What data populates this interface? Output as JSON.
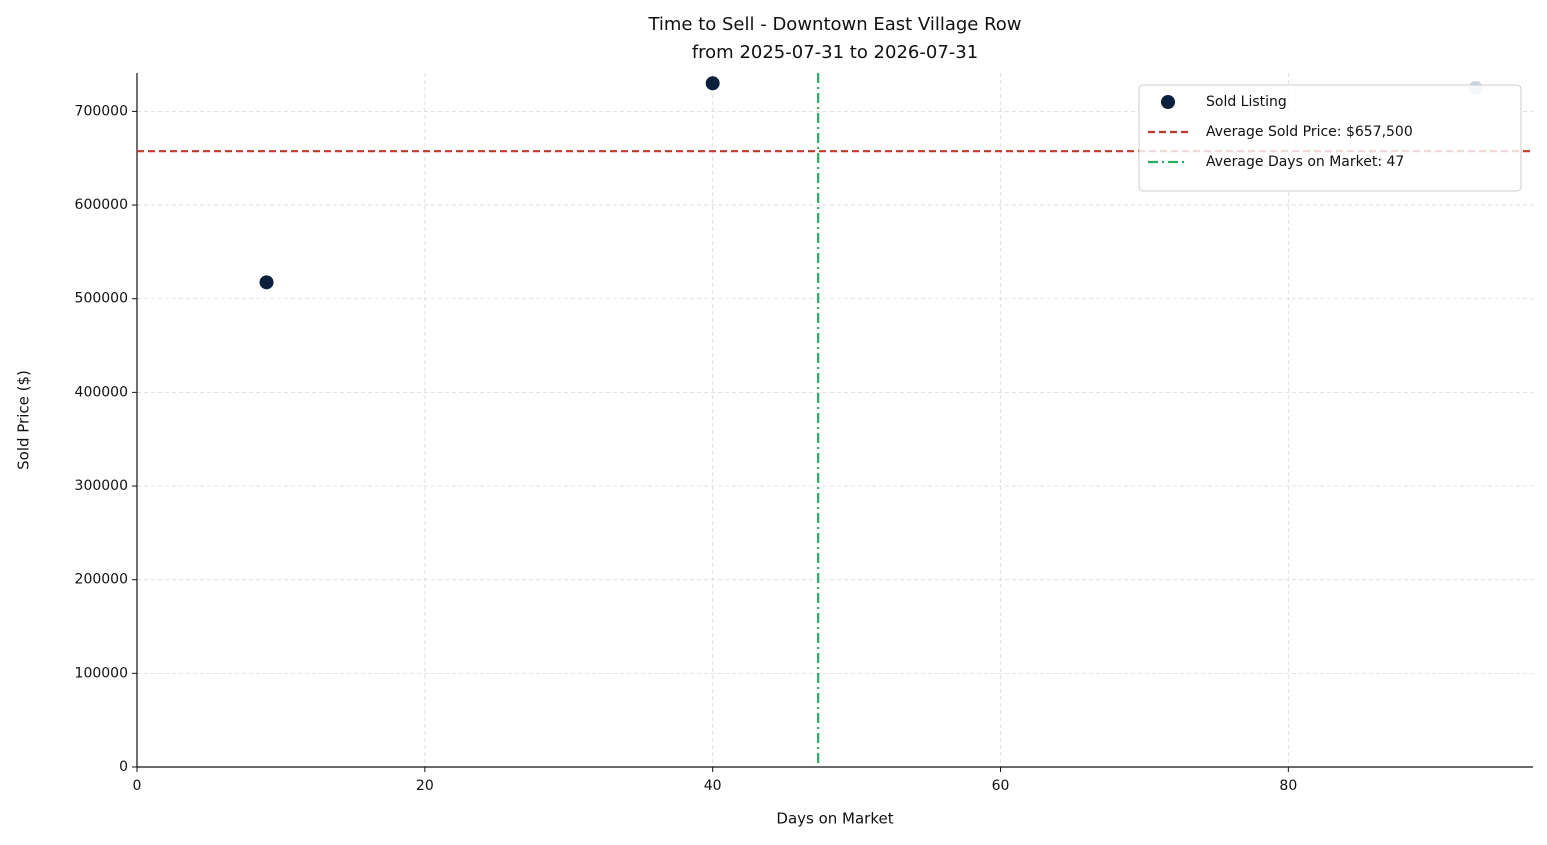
{
  "chart_data": {
    "type": "scatter",
    "title": "Time to Sell - Downtown East Village Row",
    "subtitle": "from 2025-07-31 to 2026-07-31",
    "x_label": "Days on Market",
    "y_label": "Sold Price ($)",
    "series": [
      {
        "name": "Sold Listing",
        "color": "#0b1f3f",
        "point_colors": [
          "#0b1f3f",
          "#0b1f3f",
          "#c9d5df"
        ],
        "x": [
          9,
          40,
          93
        ],
        "values": [
          517500,
          730000,
          725000
        ]
      }
    ],
    "reference_lines": [
      {
        "name": "Average Sold Price: $657,500",
        "orientation": "horizontal",
        "value": 657500,
        "color": "#c0392b",
        "dash": "dashed"
      },
      {
        "name": "Average Days on Market: 47",
        "orientation": "vertical",
        "value": 47.33,
        "color": "#27ae60",
        "dash": "dashdot"
      }
    ],
    "xlim": [
      0,
      97
    ],
    "ylim": [
      0,
      741000
    ],
    "xticks": [
      0,
      20,
      40,
      60,
      80
    ],
    "yticks": [
      0,
      100000,
      200000,
      300000,
      400000,
      500000,
      600000,
      700000
    ],
    "grid": true,
    "legend": "upper right"
  }
}
